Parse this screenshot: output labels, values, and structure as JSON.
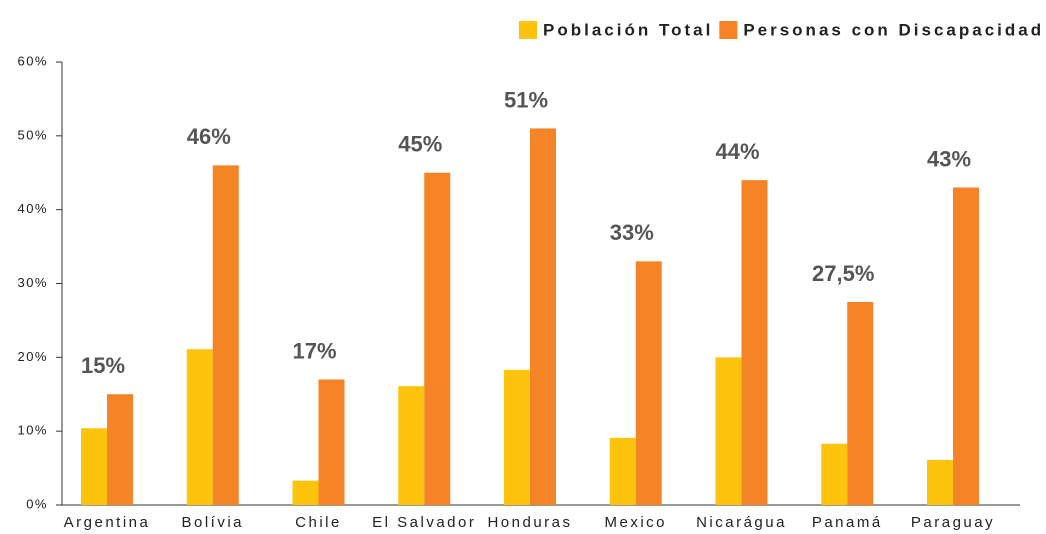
{
  "chart_data": {
    "type": "bar",
    "categories": [
      "Argentina",
      "Bolívia",
      "Chile",
      "El Salvador",
      "Honduras",
      "Mexico",
      "Nicarágua",
      "Panamá",
      "Paraguay"
    ],
    "series": [
      {
        "name": "Población Total",
        "color": "#fec30d",
        "values": [
          10.4,
          21.1,
          3.3,
          16.1,
          18.3,
          9.1,
          20.0,
          8.3,
          6.1
        ]
      },
      {
        "name": "Personas con Discapacidad",
        "color": "#f48426",
        "values": [
          15,
          46,
          17,
          45,
          51,
          33,
          44,
          27.5,
          43
        ],
        "value_labels": [
          "15%",
          "46%",
          "17%",
          "45%",
          "51%",
          "33%",
          "44%",
          "27,5%",
          "43%"
        ]
      }
    ],
    "ylim": [
      0,
      60
    ],
    "yticks": [
      {
        "value": 0,
        "label": "0%"
      },
      {
        "value": 10,
        "label": "10%"
      },
      {
        "value": 20,
        "label": "20%"
      },
      {
        "value": 30,
        "label": "30%"
      },
      {
        "value": 40,
        "label": "40%"
      },
      {
        "value": 50,
        "label": "50%"
      },
      {
        "value": 60,
        "label": "60%"
      }
    ],
    "legend": "top-right"
  }
}
